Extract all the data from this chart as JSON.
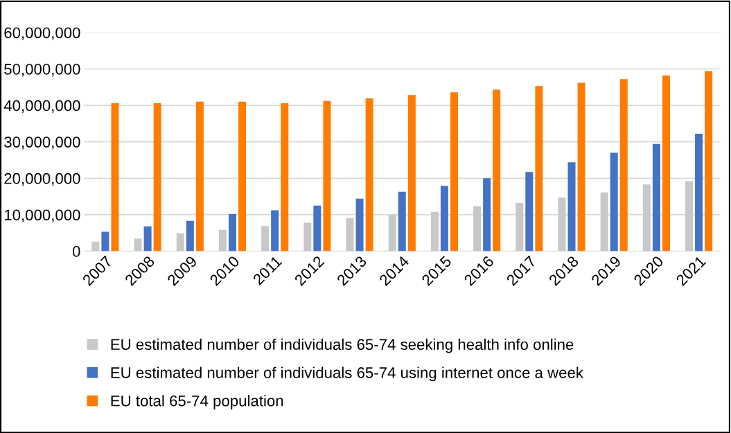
{
  "chart_data": {
    "type": "bar",
    "categories": [
      "2007",
      "2008",
      "2009",
      "2010",
      "2011",
      "2012",
      "2013",
      "2014",
      "2015",
      "2016",
      "2017",
      "2018",
      "2019",
      "2020",
      "2021"
    ],
    "series": [
      {
        "name": "EU estimated number of individuals 65-74 seeking health info online",
        "color": "#c8c8c8",
        "values": [
          2600000,
          3400000,
          4900000,
          5800000,
          6900000,
          7800000,
          9100000,
          10000000,
          10800000,
          12300000,
          13200000,
          14700000,
          16100000,
          18300000,
          19200000
        ]
      },
      {
        "name": "EU estimated number of individuals 65-74 using internet once a week",
        "color": "#4472c4",
        "values": [
          5300000,
          6800000,
          8300000,
          10200000,
          11200000,
          12500000,
          14400000,
          16300000,
          17900000,
          20000000,
          21700000,
          24400000,
          27000000,
          29400000,
          32200000
        ]
      },
      {
        "name": "EU total 65-74 population",
        "color": "#ff7c00",
        "values": [
          40600000,
          40600000,
          41000000,
          41000000,
          40600000,
          41200000,
          41900000,
          42800000,
          43600000,
          44300000,
          45300000,
          46200000,
          47200000,
          48200000,
          49400000
        ]
      }
    ],
    "ylim": [
      0,
      60000000
    ],
    "yticks": [
      {
        "value": 0,
        "label": "0"
      },
      {
        "value": 10000000,
        "label": "10,000,000"
      },
      {
        "value": 20000000,
        "label": "20,000,000"
      },
      {
        "value": 30000000,
        "label": "30,000,000"
      },
      {
        "value": 40000000,
        "label": "40,000,000"
      },
      {
        "value": 50000000,
        "label": "50,000,000"
      },
      {
        "value": 60000000,
        "label": "60,000,000"
      }
    ],
    "grid": "y",
    "legend": "bottom"
  }
}
